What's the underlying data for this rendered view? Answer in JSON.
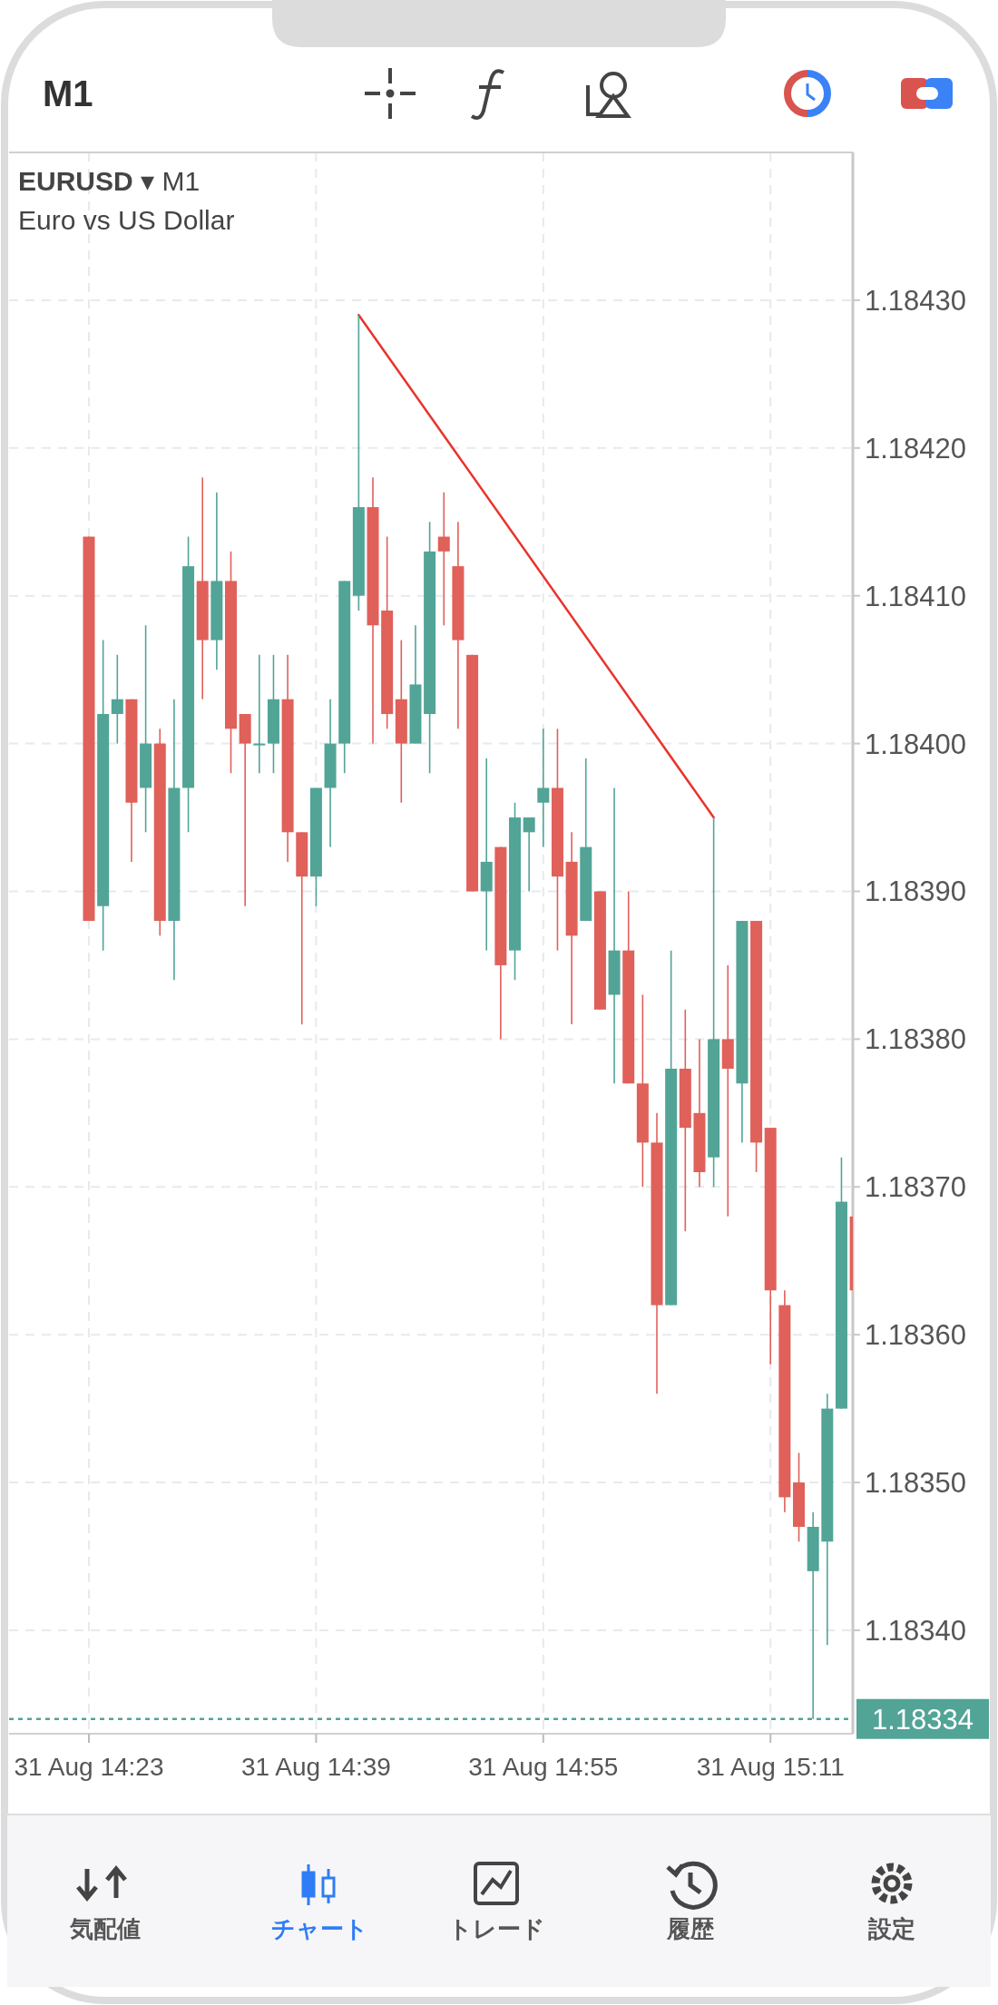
{
  "chart_data": {
    "type": "candlestick",
    "title": "**EURUSD** ▾ M1",
    "subtitle": "Euro vs US Dollar",
    "annotations": [
      "M1",
      "気配値",
      "チャート",
      "トレード",
      "履歴",
      "設定"
    ],
    "categories": [
      "31 Aug 14:23",
      null,
      null,
      null,
      null,
      null,
      null,
      null,
      null,
      null,
      null,
      null,
      null,
      null,
      null,
      null,
      "31 Aug 14:39",
      null,
      null,
      null,
      null,
      null,
      null,
      null,
      null,
      null,
      null,
      null,
      null,
      null,
      null,
      null,
      "31 Aug 14:55",
      null,
      null,
      null,
      null,
      null,
      null,
      null,
      null,
      null,
      null,
      null,
      null,
      null,
      null,
      null,
      "31 Aug 15:11",
      null,
      null,
      null,
      null,
      null,
      null
    ],
    "ohlc": [
      [
        1.18414,
        1.18414,
        1.18388,
        1.18388
      ],
      [
        1.18389,
        1.18407,
        1.18386,
        1.18402
      ],
      [
        1.18402,
        1.18406,
        1.184,
        1.18403
      ],
      [
        1.18403,
        1.18403,
        1.18392,
        1.18396
      ],
      [
        1.18397,
        1.18408,
        1.18394,
        1.184
      ],
      [
        1.184,
        1.18401,
        1.18387,
        1.18388
      ],
      [
        1.18388,
        1.18403,
        1.18384,
        1.18397
      ],
      [
        1.18397,
        1.18414,
        1.18394,
        1.18412
      ],
      [
        1.18411,
        1.18418,
        1.18403,
        1.18407
      ],
      [
        1.18407,
        1.18417,
        1.18405,
        1.18411
      ],
      [
        1.18411,
        1.18413,
        1.18398,
        1.18401
      ],
      [
        1.18402,
        1.18402,
        1.18389,
        1.184
      ],
      [
        1.184,
        1.18406,
        1.18398,
        1.184
      ],
      [
        1.184,
        1.18406,
        1.18398,
        1.18403
      ],
      [
        1.18403,
        1.18406,
        1.18392,
        1.18394
      ],
      [
        1.18394,
        1.18394,
        1.18381,
        1.18391
      ],
      [
        1.18391,
        1.18397,
        1.18389,
        1.18397
      ],
      [
        1.18397,
        1.18403,
        1.18393,
        1.184
      ],
      [
        1.184,
        1.18411,
        1.18398,
        1.18411
      ],
      [
        1.1841,
        1.18429,
        1.18409,
        1.18416
      ],
      [
        1.18416,
        1.18418,
        1.184,
        1.18408
      ],
      [
        1.18409,
        1.18414,
        1.18401,
        1.18402
      ],
      [
        1.18403,
        1.18407,
        1.18396,
        1.184
      ],
      [
        1.184,
        1.18408,
        1.184,
        1.18404
      ],
      [
        1.18402,
        1.18415,
        1.18398,
        1.18413
      ],
      [
        1.18414,
        1.18417,
        1.18408,
        1.18413
      ],
      [
        1.18412,
        1.18415,
        1.18401,
        1.18407
      ],
      [
        1.18406,
        1.18406,
        1.1839,
        1.1839
      ],
      [
        1.1839,
        1.18399,
        1.18386,
        1.18392
      ],
      [
        1.18393,
        1.18393,
        1.1838,
        1.18385
      ],
      [
        1.18386,
        1.18396,
        1.18384,
        1.18395
      ],
      [
        1.18394,
        1.18395,
        1.1839,
        1.18395
      ],
      [
        1.18396,
        1.18401,
        1.18393,
        1.18397
      ],
      [
        1.18397,
        1.18401,
        1.18386,
        1.18391
      ],
      [
        1.18392,
        1.18394,
        1.18381,
        1.18387
      ],
      [
        1.18388,
        1.18399,
        1.18388,
        1.18393
      ],
      [
        1.1839,
        1.1839,
        1.18382,
        1.18382
      ],
      [
        1.18383,
        1.18397,
        1.18377,
        1.18386
      ],
      [
        1.18386,
        1.1839,
        1.18377,
        1.18377
      ],
      [
        1.18377,
        1.18383,
        1.1837,
        1.18373
      ],
      [
        1.18373,
        1.18375,
        1.18356,
        1.18362
      ],
      [
        1.18362,
        1.18386,
        1.18362,
        1.18378
      ],
      [
        1.18378,
        1.18382,
        1.18367,
        1.18374
      ],
      [
        1.18375,
        1.1838,
        1.1837,
        1.18371
      ],
      [
        1.18372,
        1.18395,
        1.1837,
        1.1838
      ],
      [
        1.1838,
        1.18385,
        1.18368,
        1.18378
      ],
      [
        1.18377,
        1.18388,
        1.18373,
        1.18388
      ],
      [
        1.18388,
        1.18388,
        1.18371,
        1.18373
      ],
      [
        1.18374,
        1.18374,
        1.18358,
        1.18363
      ],
      [
        1.18362,
        1.18363,
        1.18348,
        1.18349
      ],
      [
        1.1835,
        1.18352,
        1.18346,
        1.18347
      ],
      [
        1.18344,
        1.18348,
        1.18334,
        1.18347
      ],
      [
        1.18346,
        1.18356,
        1.18339,
        1.18355
      ],
      [
        1.18355,
        1.18372,
        1.18355,
        1.18369
      ],
      [
        1.18368,
        1.18368,
        1.18363,
        1.18363
      ]
    ],
    "colors": [
      "#e0605a",
      "#52a497",
      "#52a497",
      "#e0605a",
      "#52a497",
      "#e0605a",
      "#52a497",
      "#52a497",
      "#e0605a",
      "#52a497",
      "#e0605a",
      "#e0605a",
      "#52a497",
      "#52a497",
      "#e0605a",
      "#e0605a",
      "#52a497",
      "#52a497",
      "#52a497",
      "#52a497",
      "#e0605a",
      "#e0605a",
      "#e0605a",
      "#52a497",
      "#52a497",
      "#e0605a",
      "#e0605a",
      "#e0605a",
      "#52a497",
      "#e0605a",
      "#52a497",
      "#52a497",
      "#52a497",
      "#e0605a",
      "#e0605a",
      "#52a497",
      "#e0605a",
      "#52a497",
      "#e0605a",
      "#e0605a",
      "#e0605a",
      "#52a497",
      "#e0605a",
      "#e0605a",
      "#52a497",
      "#e0605a",
      "#52a497",
      "#e0605a",
      "#e0605a",
      "#e0605a",
      "#e0605a",
      "#52a497",
      "#52a497",
      "#52a497",
      "#e0605a"
    ],
    "series": [
      {
        "type": "line",
        "color": "#e8342c",
        "values": [
          null,
          null,
          null,
          null,
          null,
          null,
          null,
          null,
          null,
          null,
          null,
          null,
          null,
          null,
          null,
          null,
          null,
          null,
          null,
          1.18429,
          null,
          null,
          null,
          null,
          null,
          null,
          null,
          null,
          null,
          null,
          null,
          null,
          null,
          null,
          null,
          null,
          null,
          null,
          null,
          null,
          null,
          null,
          null,
          null,
          1.18395,
          null,
          null,
          null,
          null,
          null,
          null,
          null,
          null,
          null,
          null
        ]
      }
    ],
    "ylim": [
      1.18333,
      1.1844
    ],
    "yticks": [
      {
        "value": 1.1834,
        "label": "1.18340"
      },
      {
        "value": 1.1835,
        "label": "1.18350"
      },
      {
        "value": 1.1836,
        "label": "1.18360"
      },
      {
        "value": 1.1837,
        "label": "1.18370"
      },
      {
        "value": 1.1838,
        "label": "1.18380"
      },
      {
        "value": 1.1839,
        "label": "1.18390"
      },
      {
        "value": 1.184,
        "label": "1.18400"
      },
      {
        "value": 1.1841,
        "label": "1.18410"
      },
      {
        "value": 1.1842,
        "label": "1.18420"
      },
      {
        "value": 1.1843,
        "label": "1.18430"
      }
    ],
    "grid": true,
    "ref_lines": [
      {
        "axis": "y",
        "value": 1.18334,
        "label": "1.18334",
        "color": "#52a497",
        "line_style": "dotted"
      }
    ]
  }
}
